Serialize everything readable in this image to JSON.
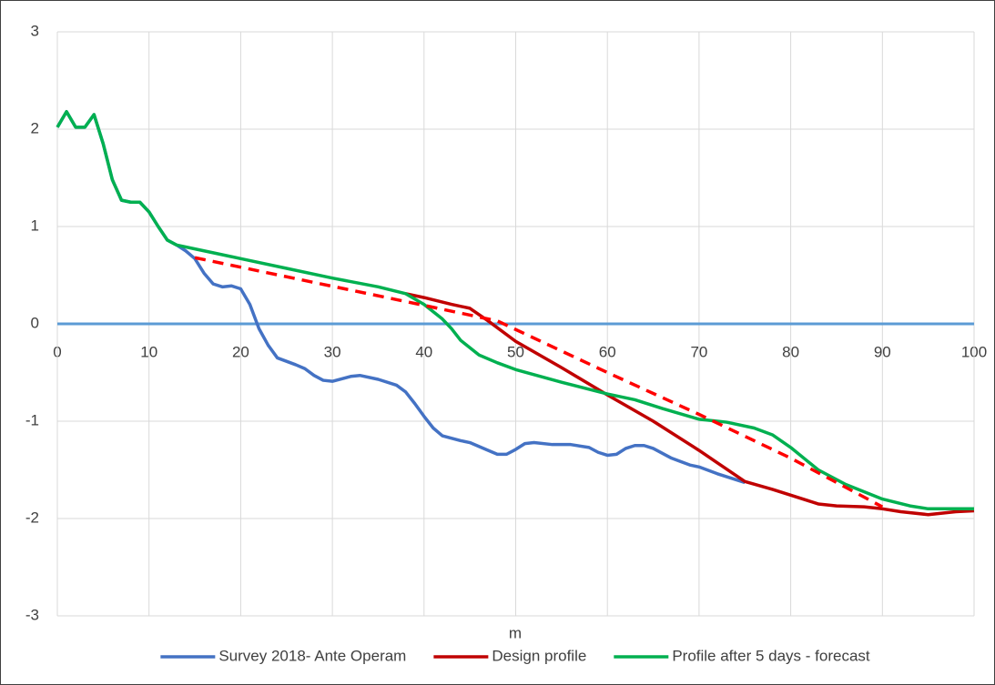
{
  "chart_data": {
    "type": "line",
    "x_label": "m",
    "xlim": [
      0,
      100
    ],
    "xticks": [
      0,
      10,
      20,
      30,
      40,
      50,
      60,
      70,
      80,
      90,
      100
    ],
    "ylim": [
      -3,
      3
    ],
    "yticks": [
      -3,
      -2,
      -1,
      0,
      1,
      2,
      3
    ],
    "grid": true,
    "legend": "bottom",
    "x_axis_color": "#5b9bd5",
    "series": [
      {
        "name": "Survey 2018- Ante Operam",
        "color": "#4472c4",
        "x": [
          0,
          1,
          2,
          3,
          4,
          5,
          6,
          7,
          8,
          9,
          10,
          11,
          12,
          13,
          14,
          15,
          16,
          17,
          18,
          19,
          20,
          21,
          22,
          23,
          24,
          26,
          27,
          28,
          29,
          30,
          32,
          33,
          35,
          37,
          38,
          39,
          40,
          41,
          42,
          44,
          45,
          47,
          48,
          49,
          50,
          51,
          52,
          54,
          56,
          58,
          59,
          60,
          61,
          62,
          63,
          64,
          65,
          67,
          69,
          70,
          72,
          75
        ],
        "values": [
          2.02,
          2.18,
          2.02,
          2.02,
          2.15,
          1.85,
          1.48,
          1.27,
          1.25,
          1.25,
          1.15,
          1.0,
          0.86,
          0.81,
          0.75,
          0.67,
          0.52,
          0.41,
          0.38,
          0.39,
          0.36,
          0.2,
          -0.05,
          -0.22,
          -0.35,
          -0.42,
          -0.46,
          -0.53,
          -0.58,
          -0.59,
          -0.54,
          -0.53,
          -0.57,
          -0.63,
          -0.7,
          -0.82,
          -0.95,
          -1.07,
          -1.15,
          -1.2,
          -1.22,
          -1.3,
          -1.34,
          -1.34,
          -1.29,
          -1.23,
          -1.22,
          -1.24,
          -1.24,
          -1.27,
          -1.32,
          -1.35,
          -1.34,
          -1.28,
          -1.25,
          -1.25,
          -1.28,
          -1.38,
          -1.45,
          -1.47,
          -1.54,
          -1.63
        ]
      },
      {
        "name": "Design profile",
        "color": "#c00000",
        "x": [
          38,
          40,
          43,
          45,
          47,
          50,
          55,
          60,
          65,
          70,
          75,
          78,
          80,
          83,
          85,
          88,
          90,
          92,
          95,
          98,
          100
        ],
        "values": [
          0.31,
          0.27,
          0.2,
          0.16,
          0.03,
          -0.18,
          -0.45,
          -0.73,
          -1.0,
          -1.3,
          -1.62,
          -1.7,
          -1.76,
          -1.85,
          -1.87,
          -1.88,
          -1.9,
          -1.93,
          -1.96,
          -1.93,
          -1.92
        ]
      },
      {
        "name": "Profile after 5 days - forecast",
        "color": "#00b050",
        "x": [
          0,
          1,
          2,
          3,
          4,
          5,
          6,
          7,
          8,
          9,
          10,
          11,
          12,
          13,
          15,
          17,
          20,
          25,
          30,
          35,
          38,
          40,
          42,
          43,
          44,
          46,
          48,
          50,
          55,
          60,
          63,
          66,
          70,
          73,
          76,
          78,
          80,
          83,
          86,
          90,
          93,
          95,
          100
        ],
        "values": [
          2.02,
          2.18,
          2.02,
          2.02,
          2.15,
          1.85,
          1.48,
          1.27,
          1.25,
          1.25,
          1.15,
          1.0,
          0.86,
          0.81,
          0.77,
          0.73,
          0.67,
          0.57,
          0.47,
          0.38,
          0.31,
          0.2,
          0.05,
          -0.05,
          -0.17,
          -0.32,
          -0.4,
          -0.47,
          -0.6,
          -0.72,
          -0.78,
          -0.87,
          -0.98,
          -1.01,
          -1.07,
          -1.14,
          -1.27,
          -1.5,
          -1.65,
          -1.8,
          -1.87,
          -1.9,
          -1.9
        ]
      },
      {
        "color": "#ff0000",
        "dashed": true,
        "x": [
          15,
          40,
          48,
          60,
          70,
          80,
          90
        ],
        "values": [
          0.68,
          0.19,
          0.03,
          -0.5,
          -0.93,
          -1.38,
          -1.88
        ]
      }
    ]
  }
}
